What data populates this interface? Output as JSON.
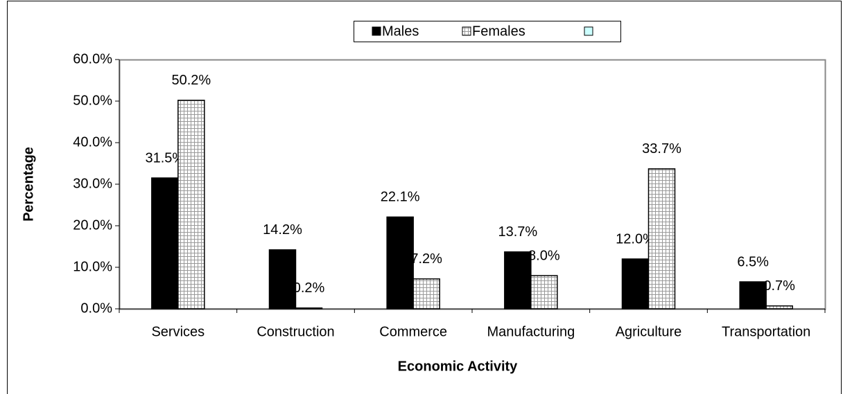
{
  "chart_data": {
    "type": "bar",
    "x_label": "Economic Activity",
    "y_label": "Percentage",
    "categories": [
      "Services",
      "Construction",
      "Commerce",
      "Manufacturing",
      "Agriculture",
      "Transportation"
    ],
    "series": [
      {
        "name": "Males",
        "color": "#000000",
        "values": [
          31.5,
          14.2,
          22.1,
          13.7,
          12.0,
          6.5
        ],
        "value_labels": [
          "31.5%",
          "14.2%",
          "22.1%",
          "13.7%",
          "12.0%",
          "6.5%"
        ]
      },
      {
        "name": "Females",
        "color": "#ffffff",
        "values": [
          50.2,
          0.2,
          7.2,
          8.0,
          33.7,
          0.7
        ],
        "value_labels": [
          "50.2%",
          "0.2%",
          "7.2%",
          "8.0%",
          "33.7%",
          "0.7%"
        ]
      }
    ],
    "ylim": [
      0,
      60
    ],
    "yticks": [
      {
        "value": 0,
        "label": "0.0%"
      },
      {
        "value": 10,
        "label": "10.0%"
      },
      {
        "value": 20,
        "label": "20.0%"
      },
      {
        "value": 30,
        "label": "30.0%"
      },
      {
        "value": 40,
        "label": "40.0%"
      },
      {
        "value": 50,
        "label": "50.0%"
      },
      {
        "value": 60,
        "label": "60.0%"
      }
    ],
    "grid": false,
    "legend": "top"
  }
}
